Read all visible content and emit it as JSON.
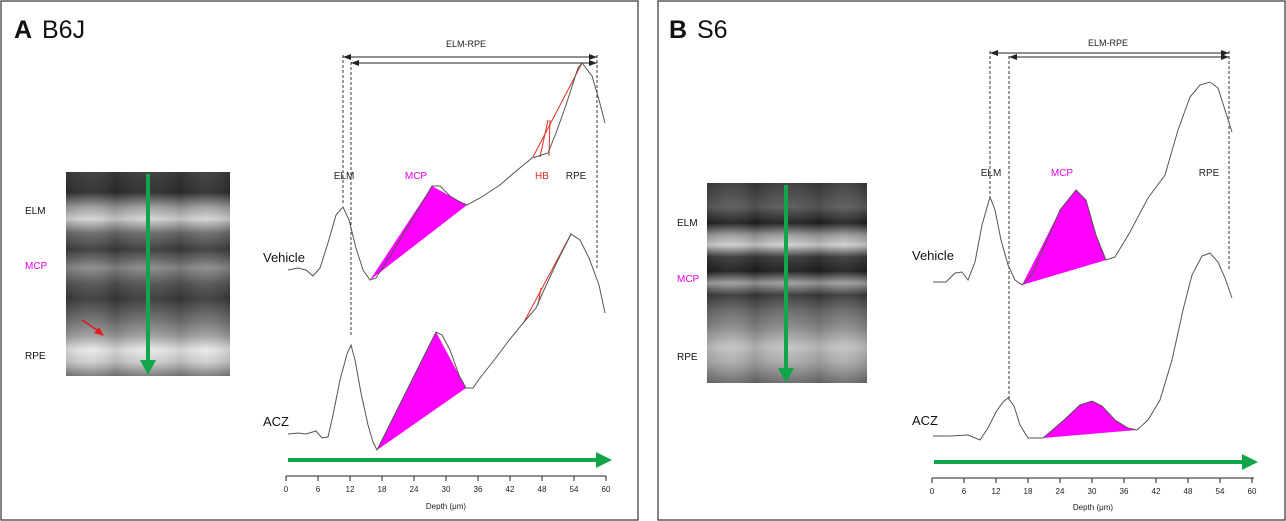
{
  "colors": {
    "curve": "#555555",
    "mcp_fill": "#ff00ff",
    "mcp_text": "#e600e6",
    "hb": "#e03020",
    "arrow_green": "#13a54a",
    "red_arrow": "#e21b1b",
    "guide": "#222222",
    "panel_border": "#333333"
  },
  "panels": [
    {
      "letter": "A",
      "title": "B6J",
      "oct_labels": {
        "elm": "ELM",
        "mcp": "MCP",
        "rpe": "RPE"
      },
      "bracket_label": "ELM-RPE",
      "peak_labels": {
        "elm": "ELM",
        "mcp": "MCP",
        "hb": "HB",
        "rpe": "RPE"
      },
      "traces": [
        {
          "label": "Vehicle"
        },
        {
          "label": "ACZ"
        }
      ],
      "axis": {
        "ticks": [
          "0",
          "6",
          "12",
          "18",
          "24",
          "30",
          "36",
          "42",
          "48",
          "54",
          "60"
        ],
        "xlabel": "Depth (μm)"
      }
    },
    {
      "letter": "B",
      "title": "S6",
      "oct_labels": {
        "elm": "ELM",
        "mcp": "MCP",
        "rpe": "RPE"
      },
      "bracket_label": "ELM-RPE",
      "peak_labels": {
        "elm": "ELM",
        "mcp": "MCP",
        "rpe": "RPE"
      },
      "traces": [
        {
          "label": "Vehicle"
        },
        {
          "label": "ACZ"
        }
      ],
      "axis": {
        "ticks": [
          "0",
          "6",
          "12",
          "18",
          "24",
          "30",
          "36",
          "42",
          "48",
          "54",
          "60"
        ],
        "xlabel": "Depth (μm)"
      }
    }
  ]
}
